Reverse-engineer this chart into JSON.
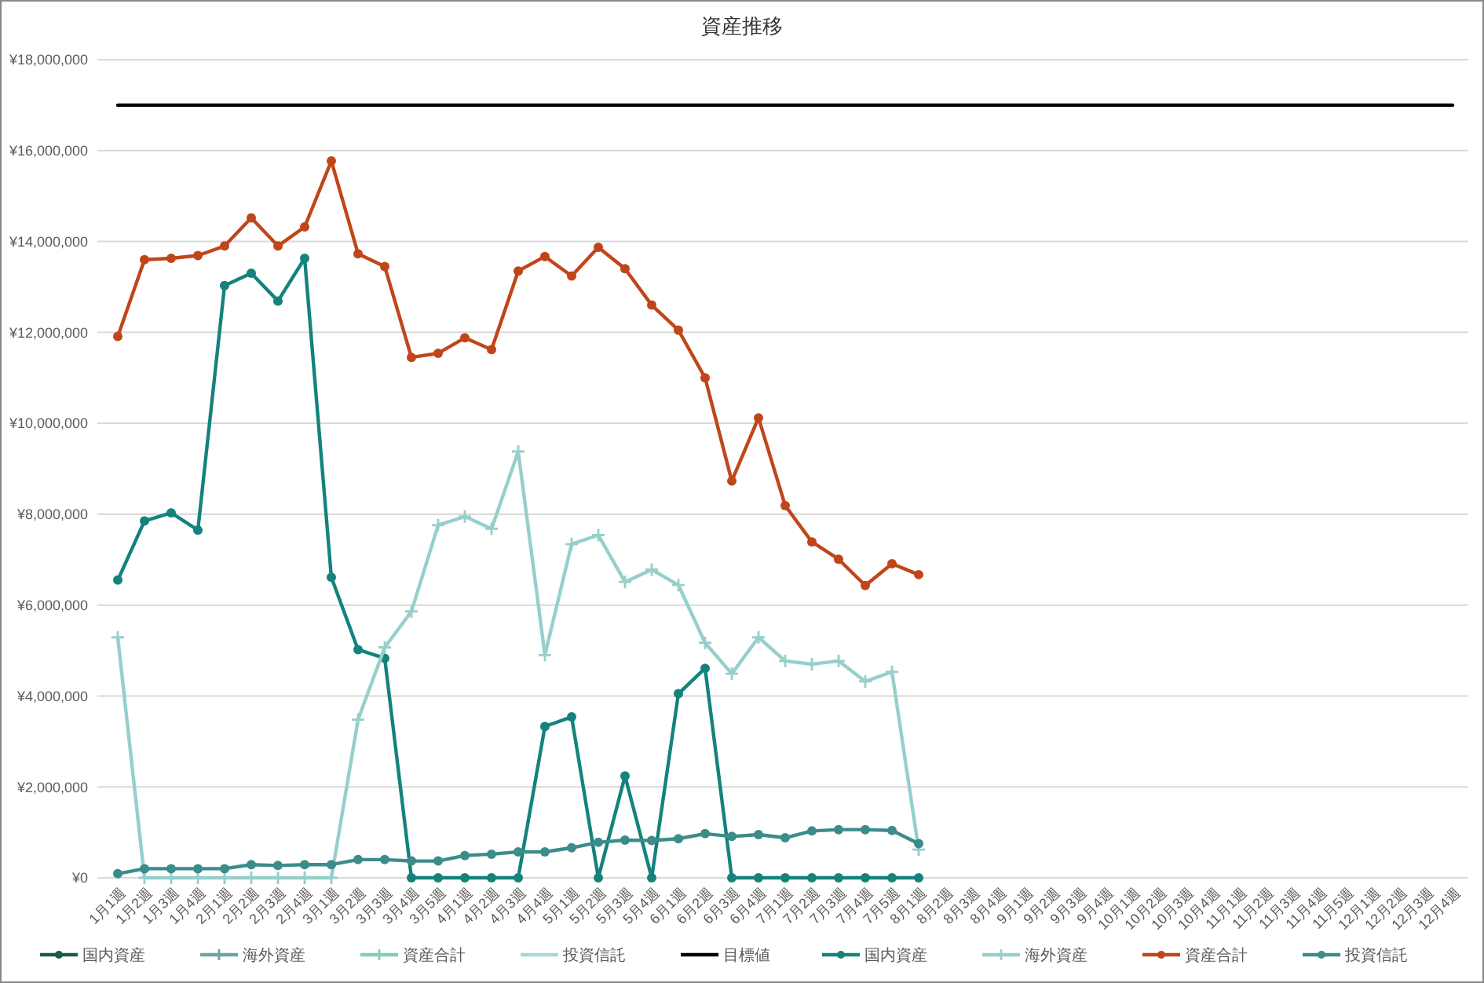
{
  "chart_data": {
    "type": "line",
    "title": "資産推移",
    "categories": [
      "1月1週",
      "1月2週",
      "1月3週",
      "1月4週",
      "2月1週",
      "2月2週",
      "2月3週",
      "2月4週",
      "3月1週",
      "3月2週",
      "3月3週",
      "3月4週",
      "3月5週",
      "4月1週",
      "4月2週",
      "4月3週",
      "4月4週",
      "5月1週",
      "5月2週",
      "5月3週",
      "5月4週",
      "6月1週",
      "6月2週",
      "6月3週",
      "6月4週",
      "7月1週",
      "7月2週",
      "7月3週",
      "7月4週",
      "7月5週",
      "8月1週",
      "8月2週",
      "8月3週",
      "8月4週",
      "9月1週",
      "9月2週",
      "9月3週",
      "9月4週",
      "10月1週",
      "10月2週",
      "10月3週",
      "10月4週",
      "11月1週",
      "11月2週",
      "11月3週",
      "11月4週",
      "11月5週",
      "12月1週",
      "12月2週",
      "12月3週",
      "12月4週"
    ],
    "ylim": [
      0,
      18000000
    ],
    "yticks": [
      {
        "value": 0,
        "label": "¥0"
      },
      {
        "value": 2000000,
        "label": "¥2,000,000"
      },
      {
        "value": 4000000,
        "label": "¥4,000,000"
      },
      {
        "value": 6000000,
        "label": "¥6,000,000"
      },
      {
        "value": 8000000,
        "label": "¥8,000,000"
      },
      {
        "value": 10000000,
        "label": "¥10,000,000"
      },
      {
        "value": 12000000,
        "label": "¥12,000,000"
      },
      {
        "value": 14000000,
        "label": "¥14,000,000"
      },
      {
        "value": 16000000,
        "label": "¥16,000,000"
      },
      {
        "value": 18000000,
        "label": "¥18,000,000"
      }
    ],
    "grid": "y",
    "legend": "bottom",
    "series": [
      {
        "name": "国内資産",
        "color": "#1a5c4a",
        "marker": "circle",
        "values": [
          null,
          null,
          null,
          null,
          null,
          null,
          null,
          null,
          null,
          null,
          null,
          null,
          null,
          null,
          null,
          null,
          null,
          null,
          null,
          null,
          null,
          null,
          null,
          null,
          null,
          null,
          null,
          null,
          null,
          null,
          null,
          null,
          null,
          null,
          null,
          null,
          null,
          null,
          null,
          null,
          null,
          null,
          null,
          null,
          null,
          null,
          null,
          null,
          null,
          null,
          null
        ]
      },
      {
        "name": "海外資産",
        "color": "#6fa3a8",
        "marker": "cross",
        "values": [
          null,
          null,
          null,
          null,
          null,
          null,
          null,
          null,
          null,
          null,
          null,
          null,
          null,
          null,
          null,
          null,
          null,
          null,
          null,
          null,
          null,
          null,
          null,
          null,
          null,
          null,
          null,
          null,
          null,
          null,
          null,
          null,
          null,
          null,
          null,
          null,
          null,
          null,
          null,
          null,
          null,
          null,
          null,
          null,
          null,
          null,
          null,
          null,
          null,
          null,
          null
        ]
      },
      {
        "name": "資産合計",
        "color": "#7fd1b0",
        "marker": "cross",
        "values": [
          null,
          null,
          null,
          null,
          null,
          null,
          null,
          null,
          null,
          null,
          null,
          null,
          null,
          null,
          null,
          null,
          null,
          null,
          null,
          null,
          null,
          null,
          null,
          null,
          null,
          null,
          null,
          null,
          null,
          null,
          null,
          null,
          null,
          null,
          null,
          null,
          null,
          null,
          null,
          null,
          null,
          null,
          null,
          null,
          null,
          null,
          null,
          null,
          null,
          null,
          null
        ]
      },
      {
        "name": "投資信託",
        "color": "#a8d8d8",
        "marker": "none",
        "values": [
          null,
          null,
          null,
          null,
          null,
          null,
          null,
          null,
          null,
          null,
          null,
          null,
          null,
          null,
          null,
          null,
          null,
          null,
          null,
          null,
          null,
          null,
          null,
          null,
          null,
          null,
          null,
          null,
          null,
          null,
          null,
          null,
          null,
          null,
          null,
          null,
          null,
          null,
          null,
          null,
          null,
          null,
          null,
          null,
          null,
          null,
          null,
          null,
          null,
          null,
          null
        ]
      },
      {
        "name": "目標値",
        "color": "#000000",
        "marker": "none",
        "values": [
          17000000,
          17000000,
          17000000,
          17000000,
          17000000,
          17000000,
          17000000,
          17000000,
          17000000,
          17000000,
          17000000,
          17000000,
          17000000,
          17000000,
          17000000,
          17000000,
          17000000,
          17000000,
          17000000,
          17000000,
          17000000,
          17000000,
          17000000,
          17000000,
          17000000,
          17000000,
          17000000,
          17000000,
          17000000,
          17000000,
          17000000,
          17000000,
          17000000,
          17000000,
          17000000,
          17000000,
          17000000,
          17000000,
          17000000,
          17000000,
          17000000,
          17000000,
          17000000,
          17000000,
          17000000,
          17000000,
          17000000,
          17000000,
          17000000,
          17000000,
          17000000
        ]
      },
      {
        "name": "国内資産",
        "color": "#13837c",
        "marker": "circle",
        "values": [
          6550000,
          7850000,
          8030000,
          7650000,
          13030000,
          13300000,
          12690000,
          13630000,
          6610000,
          5020000,
          4830000,
          0,
          0,
          0,
          0,
          0,
          3330000,
          3540000,
          0,
          2240000,
          0,
          4050000,
          4610000,
          0,
          0,
          0,
          0,
          0,
          0,
          0,
          0,
          null,
          null,
          null,
          null,
          null,
          null,
          null,
          null,
          null,
          null,
          null,
          null,
          null,
          null,
          null,
          null,
          null,
          null,
          null,
          null
        ]
      },
      {
        "name": "海外資産",
        "color": "#96cfcc",
        "marker": "cross",
        "values": [
          5290000,
          0,
          0,
          0,
          0,
          0,
          0,
          0,
          0,
          3480000,
          5070000,
          5860000,
          7760000,
          7950000,
          7680000,
          9380000,
          4900000,
          7340000,
          7540000,
          6510000,
          6780000,
          6440000,
          5170000,
          4490000,
          5290000,
          4770000,
          4700000,
          4770000,
          4320000,
          4530000,
          620000,
          null,
          null,
          null,
          null,
          null,
          null,
          null,
          null,
          null,
          null,
          null,
          null,
          null,
          null,
          null,
          null,
          null,
          null,
          null,
          null
        ]
      },
      {
        "name": "資産合計",
        "color": "#c0461a",
        "marker": "circle",
        "values": [
          11910000,
          13600000,
          13630000,
          13690000,
          13900000,
          14520000,
          13900000,
          14320000,
          15770000,
          13730000,
          13450000,
          11450000,
          11540000,
          11880000,
          11620000,
          13350000,
          13670000,
          13240000,
          13870000,
          13400000,
          12600000,
          12050000,
          11000000,
          8730000,
          10120000,
          8190000,
          7390000,
          7010000,
          6430000,
          6910000,
          6670000,
          null,
          null,
          null,
          null,
          null,
          null,
          null,
          null,
          null,
          null,
          null,
          null,
          null,
          null,
          null,
          null,
          null,
          null,
          null,
          null
        ]
      },
      {
        "name": "投資信託",
        "color": "#3b8c8a",
        "marker": "circle",
        "values": [
          90000,
          200000,
          200000,
          200000,
          200000,
          290000,
          270000,
          290000,
          290000,
          400000,
          400000,
          370000,
          370000,
          490000,
          520000,
          570000,
          570000,
          660000,
          780000,
          830000,
          820000,
          860000,
          970000,
          910000,
          950000,
          880000,
          1030000,
          1060000,
          1060000,
          1040000,
          750000,
          null,
          null,
          null,
          null,
          null,
          null,
          null,
          null,
          null,
          null,
          null,
          null,
          null,
          null,
          null,
          null,
          null,
          null,
          null,
          null
        ]
      }
    ]
  }
}
